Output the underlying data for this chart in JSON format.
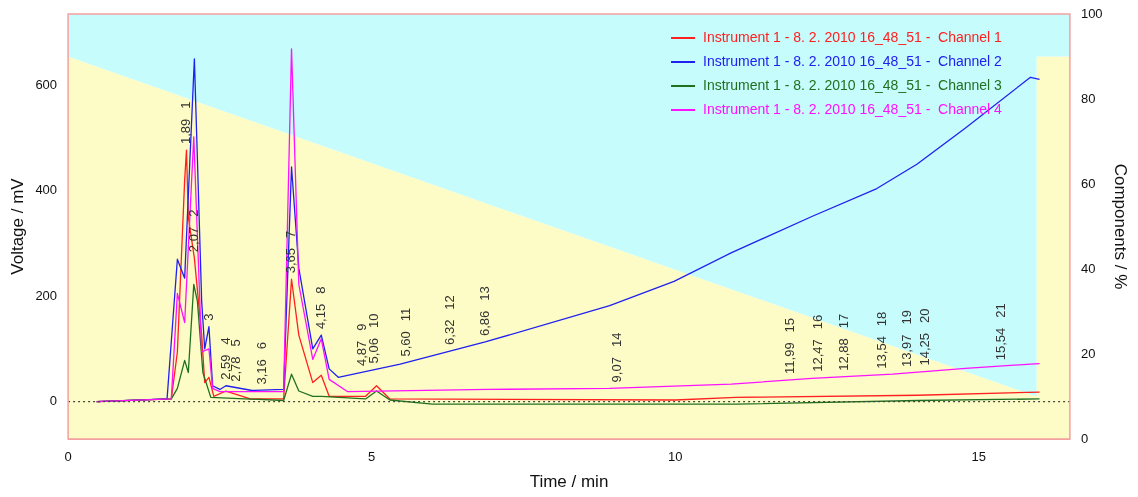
{
  "chart_data": {
    "type": "line",
    "xlabel": "Time / min",
    "ylabel": "Voltage / mV",
    "y2label": "Components / %",
    "xlim": [
      0,
      16.5
    ],
    "xticks": [
      0,
      5,
      10,
      15
    ],
    "ylim": [
      -71,
      735
    ],
    "yticks": [
      0,
      200,
      400,
      600
    ],
    "y2lim": [
      0,
      100
    ],
    "y2ticks": [
      0,
      20,
      40,
      60,
      80,
      100
    ],
    "grid": false,
    "legend": "top right",
    "marker": "none",
    "stacked": true,
    "series": [
      {
        "type": "area",
        "axis": "y2",
        "color": "#fdfcc6",
        "x": [
          0,
          15.95,
          15.95,
          16.5
        ],
        "values": [
          90,
          10,
          90,
          90
        ]
      },
      {
        "type": "area",
        "axis": "y2",
        "color": "#c6fcfc",
        "x": [
          0,
          15.95,
          15.95,
          16.5
        ],
        "values": [
          10,
          90,
          10,
          10
        ]
      },
      {
        "name": "Instrument 1 - 8. 2. 2010 16_48_51 -  Channel 1",
        "color": "#ff2020",
        "x": [
          0.47,
          1.7,
          1.8,
          1.92,
          1.95,
          1.98,
          2.08,
          2.2,
          2.25,
          2.32,
          2.4,
          2.6,
          3.0,
          3.55,
          3.68,
          3.8,
          4.03,
          4.17,
          4.3,
          4.9,
          5.08,
          5.3,
          10,
          11,
          14,
          16
        ],
        "values": [
          0,
          5,
          94,
          420,
          477,
          350,
          272,
          126,
          36,
          46,
          10,
          20,
          5,
          5,
          232,
          126,
          36,
          50,
          10,
          10,
          30,
          5,
          3,
          8,
          12,
          18
        ]
      },
      {
        "name": "Instrument 1 - 8. 2. 2010 16_48_51 -  Channel 2",
        "color": "#2020f0",
        "x": [
          0.47,
          1.63,
          1.8,
          1.92,
          2.08,
          2.2,
          2.25,
          2.32,
          2.38,
          2.5,
          2.6,
          3.03,
          3.55,
          3.68,
          3.8,
          4.03,
          4.17,
          4.3,
          4.45,
          5.47,
          6.87,
          8.92,
          9.98,
          10.92,
          12.25,
          13.32,
          13.98,
          14.78,
          15.85,
          16.0
        ],
        "values": [
          0,
          5,
          270,
          234,
          650,
          190,
          100,
          142,
          30,
          23,
          30,
          21,
          23,
          445,
          253,
          100,
          126,
          62,
          46,
          71,
          113,
          182,
          228,
          282,
          351,
          404,
          450,
          519,
          615,
          611
        ]
      },
      {
        "name": "Instrument 1 - 8. 2. 2010 16_48_51 -  Channel 3",
        "color": "#207020",
        "x": [
          0.47,
          1.7,
          1.8,
          1.92,
          1.98,
          2.07,
          2.13,
          2.22,
          2.35,
          3.55,
          3.68,
          3.8,
          4.03,
          4.17,
          4.9,
          5.08,
          5.3,
          6,
          11,
          14,
          16
        ],
        "values": [
          0,
          5,
          25,
          78,
          55,
          222,
          190,
          55,
          8,
          2,
          52,
          20,
          10,
          10,
          5,
          20,
          3,
          -5,
          -5,
          2,
          5
        ]
      },
      {
        "name": "Instrument 1 - 8. 2. 2010 16_48_51 -  Channel 4",
        "color": "#ff10ff",
        "x": [
          0.47,
          1.7,
          1.8,
          1.92,
          2.07,
          2.2,
          2.32,
          2.38,
          2.5,
          3.55,
          3.68,
          3.8,
          4.03,
          4.17,
          4.3,
          4.6,
          6.92,
          8.92,
          10.92,
          12.25,
          13.58,
          14.78,
          15.85,
          16.0
        ],
        "values": [
          0,
          5,
          205,
          150,
          502,
          94,
          100,
          25,
          19,
          19,
          669,
          222,
          80,
          119,
          42,
          19,
          23,
          25,
          33,
          44,
          52,
          63,
          71,
          72
        ]
      }
    ],
    "ref_lines": [
      {
        "axis": "y",
        "value": 0,
        "line_style": "dotted",
        "color": "#444444"
      }
    ],
    "annotations": [
      {
        "text": "1,89",
        "x": 1.95,
        "y": 477
      },
      "1",
      {
        "text": "2,07",
        "x": 2.08,
        "y": 272
      },
      "2",
      {
        "text": "3",
        "x": 2.32,
        "y": 142
      },
      {
        "text": "2,59",
        "x": 2.6,
        "y": 30
      },
      "4",
      {
        "text": "2,78",
        "x": 2.78,
        "y": 26
      },
      "5",
      {
        "text": "3,16",
        "x": 3.2,
        "y": 21
      },
      "6",
      {
        "text": "3,65",
        "x": 3.68,
        "y": 232
      },
      "7",
      {
        "text": "4,15",
        "x": 4.17,
        "y": 126
      },
      "8",
      {
        "text": "4,87",
        "x": 4.85,
        "y": 56
      },
      "9",
      {
        "text": "5,06",
        "x": 5.05,
        "y": 61
      },
      "10",
      {
        "text": "5,60",
        "x": 5.58,
        "y": 74
      },
      "11",
      {
        "text": "6,32",
        "x": 6.3,
        "y": 96
      },
      "12",
      {
        "text": "6,86",
        "x": 6.87,
        "y": 113
      },
      "13",
      {
        "text": "9,07",
        "x": 9.05,
        "y": 25
      },
      "14",
      {
        "text": "11,99",
        "x": 11.9,
        "y": 41
      },
      "15",
      {
        "text": "12,47",
        "x": 12.35,
        "y": 45
      },
      "16",
      {
        "text": "12,88",
        "x": 12.78,
        "y": 47
      },
      "17",
      {
        "text": "13,54",
        "x": 13.42,
        "y": 51
      },
      "18",
      {
        "text": "13,97",
        "x": 13.82,
        "y": 54
      },
      "19",
      {
        "text": "14,25",
        "x": 14.12,
        "y": 57
      },
      "20",
      {
        "text": "15,54",
        "x": 15.38,
        "y": 67
      },
      "21"
    ]
  }
}
